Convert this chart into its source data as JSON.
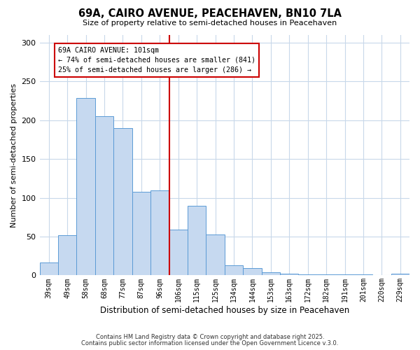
{
  "title": "69A, CAIRO AVENUE, PEACEHAVEN, BN10 7LA",
  "subtitle": "Size of property relative to semi-detached houses in Peacehaven",
  "xlabel": "Distribution of semi-detached houses by size in Peacehaven",
  "ylabel": "Number of semi-detached properties",
  "bin_labels": [
    "39sqm",
    "49sqm",
    "58sqm",
    "68sqm",
    "77sqm",
    "87sqm",
    "96sqm",
    "106sqm",
    "115sqm",
    "125sqm",
    "134sqm",
    "144sqm",
    "153sqm",
    "163sqm",
    "172sqm",
    "182sqm",
    "191sqm",
    "201sqm",
    "220sqm",
    "229sqm"
  ],
  "bar_values": [
    17,
    52,
    229,
    205,
    190,
    108,
    110,
    59,
    90,
    53,
    13,
    9,
    4,
    2,
    1,
    1,
    1,
    1,
    0,
    2
  ],
  "bar_color": "#c6d9f0",
  "bar_edgecolor": "#5b9bd5",
  "vline_x": 6.5,
  "vline_color": "#cc0000",
  "annotation_title": "69A CAIRO AVENUE: 101sqm",
  "annotation_line1": "← 74% of semi-detached houses are smaller (841)",
  "annotation_line2": "25% of semi-detached houses are larger (286) →",
  "annotation_box_edgecolor": "#cc0000",
  "ylim": [
    0,
    310
  ],
  "yticks": [
    0,
    50,
    100,
    150,
    200,
    250,
    300
  ],
  "footnote1": "Contains HM Land Registry data © Crown copyright and database right 2025.",
  "footnote2": "Contains public sector information licensed under the Open Government Licence v.3.0.",
  "background_color": "#ffffff",
  "grid_color": "#c8d8ea"
}
